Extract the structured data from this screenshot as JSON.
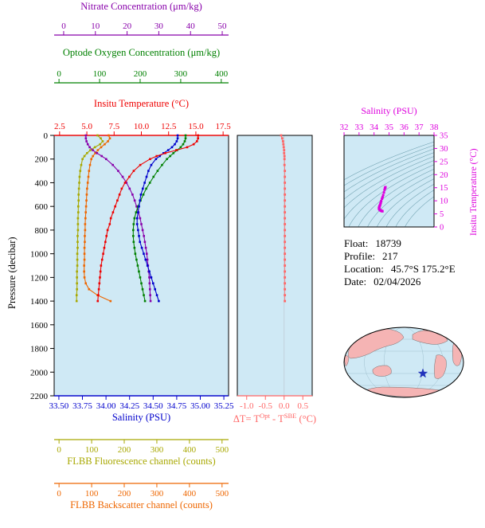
{
  "colors": {
    "nitrate": "#8800aa",
    "oxygen": "#008000",
    "temperature": "#ee0000",
    "salinity": "#0000cc",
    "fluorescence": "#a8a800",
    "backscatter": "#ee6600",
    "delta_t": "#ff6666",
    "ts": "#dd00dd",
    "pressure": "#000000",
    "plot_bg": "#cfe9f5",
    "map_land": "#f5b4b4",
    "map_ocean": "#cfe9f5",
    "star": "#2233bb",
    "contour": "#6c9fae"
  },
  "titles": {
    "nitrate": "Nitrate Concentration (μm/kg)",
    "oxygen": "Optode Oxygen Concentration (μm/kg)",
    "temperature": "Insitu Temperature (°C)",
    "pressure": "Pressure (decibar)",
    "salinity": "Salinity (PSU)",
    "fluorescence": "FLBB Fluorescence channel (counts)",
    "backscatter": "FLBB Backscatter channel (counts)",
    "ts_salinity": "Salinity (PSU)",
    "ts_temperature": "Insitu Temperature (°C)",
    "delta_t_parts": {
      "p1": "ΔT= T",
      "sup1": "Opt",
      "p2": " - T",
      "sup2": "SBE",
      "p3": " (°C)"
    }
  },
  "info": {
    "float_label": "Float:",
    "float_value": "18739",
    "profile_label": "Profile:",
    "profile_value": "217",
    "location_label": "Location:",
    "location_value": "45.7°S 175.2°E",
    "date_label": "Date:",
    "date_value": "02/04/2026"
  },
  "chart_data": {
    "type": "line",
    "pressure_dbar": [
      0,
      25,
      50,
      75,
      100,
      125,
      150,
      175,
      200,
      250,
      300,
      350,
      400,
      450,
      500,
      550,
      600,
      650,
      700,
      750,
      800,
      850,
      900,
      950,
      1000,
      1050,
      1100,
      1150,
      1200,
      1250,
      1300,
      1350,
      1400
    ],
    "pressure_axis": {
      "label": "Pressure (decibar)",
      "lim": [
        0,
        2200
      ],
      "tick_labels": [
        "0",
        "200",
        "400",
        "600",
        "800",
        "1000",
        "1200",
        "1400",
        "1600",
        "1800",
        "2000",
        "2200"
      ]
    },
    "profiles": [
      {
        "id": "fluorescence",
        "name": "FLBB Fluorescence channel (counts)",
        "lim": [
          -15,
          520
        ],
        "tick_labels": [
          "0",
          "100",
          "200",
          "300",
          "400",
          "500"
        ],
        "values": [
          118,
          128,
          134,
          126,
          110,
          96,
          86,
          78,
          72,
          68,
          65,
          63,
          62,
          61,
          60,
          60,
          59,
          59,
          58,
          58,
          58,
          57,
          57,
          57,
          56,
          56,
          56,
          55,
          55,
          55,
          55,
          54,
          54
        ]
      },
      {
        "id": "backscatter",
        "name": "FLBB Backscatter channel (counts)",
        "lim": [
          -15,
          520
        ],
        "tick_labels": [
          "0",
          "100",
          "200",
          "300",
          "400",
          "500"
        ],
        "values": [
          152,
          156,
          150,
          140,
          129,
          119,
          111,
          104,
          99,
          95,
          92,
          90,
          88,
          86,
          85,
          84,
          83,
          82,
          81,
          80,
          80,
          79,
          79,
          78,
          78,
          78,
          77,
          77,
          78,
          82,
          92,
          118,
          158
        ]
      },
      {
        "id": "nitrate",
        "name": "Nitrate Concentration (μm/kg)",
        "lim": [
          -3,
          52
        ],
        "tick_labels": [
          "0",
          "10",
          "20",
          "30",
          "40",
          "50"
        ],
        "values": [
          7.0,
          7.0,
          7.2,
          7.6,
          8.2,
          9.2,
          10.5,
          12.0,
          13.4,
          15.5,
          17.2,
          18.6,
          19.8,
          20.8,
          21.7,
          22.4,
          23.0,
          23.6,
          24.1,
          24.5,
          24.9,
          25.3,
          25.6,
          25.9,
          26.2,
          26.4,
          26.6,
          26.8,
          27.0,
          27.1,
          27.2,
          27.3,
          27.4
        ]
      },
      {
        "id": "oxygen",
        "name": "Optode Oxygen Concentration (μm/kg)",
        "lim": [
          -12,
          418
        ],
        "tick_labels": [
          "0",
          "100",
          "200",
          "300",
          "400"
        ],
        "values": [
          312,
          312,
          310,
          306,
          300,
          291,
          282,
          274,
          266,
          254,
          243,
          233,
          224,
          215,
          208,
          201,
          195,
          190,
          186,
          184,
          183,
          183,
          184,
          186,
          188,
          191,
          194,
          197,
          200,
          203,
          206,
          209,
          212
        ]
      },
      {
        "id": "salinity",
        "name": "Salinity (PSU)",
        "lim": [
          33.45,
          35.3
        ],
        "tick_labels": [
          "33.50",
          "33.75",
          "34.00",
          "34.25",
          "34.50",
          "34.75",
          "35.00",
          "35.25"
        ],
        "values": [
          34.76,
          34.76,
          34.75,
          34.73,
          34.7,
          34.66,
          34.61,
          34.57,
          34.53,
          34.48,
          34.45,
          34.43,
          34.41,
          34.39,
          34.37,
          34.36,
          34.35,
          34.34,
          34.33,
          34.33,
          34.34,
          34.35,
          34.36,
          34.38,
          34.4,
          34.42,
          34.44,
          34.46,
          34.48,
          34.5,
          34.52,
          34.54,
          34.56
        ]
      },
      {
        "id": "temperature",
        "name": "Insitu Temperature (°C)",
        "lim": [
          2.0,
          18.0
        ],
        "tick_labels": [
          "2.5",
          "5.0",
          "7.5",
          "10.0",
          "12.5",
          "15.0",
          "17.5"
        ],
        "values": [
          15.2,
          15.2,
          15.1,
          14.8,
          14.2,
          13.2,
          12.2,
          11.4,
          10.8,
          9.9,
          9.3,
          8.9,
          8.5,
          8.2,
          8.0,
          7.8,
          7.6,
          7.4,
          7.2,
          7.1,
          6.9,
          6.8,
          6.7,
          6.6,
          6.5,
          6.4,
          6.3,
          6.25,
          6.2,
          6.15,
          6.1,
          6.05,
          6.0
        ]
      }
    ],
    "delta_t": {
      "name": "ΔT= TOpt - TSBE (°C)",
      "lim": [
        -1.25,
        0.75
      ],
      "tick_labels": [
        "-1.0",
        "-0.5",
        "0.0",
        "0.5"
      ],
      "values": [
        -0.08,
        -0.05,
        -0.03,
        -0.02,
        -0.01,
        0.0,
        0.0,
        0.01,
        0.01,
        0.01,
        0.02,
        0.02,
        0.02,
        0.02,
        0.02,
        0.02,
        0.02,
        0.02,
        0.02,
        0.02,
        0.02,
        0.02,
        0.02,
        0.02,
        0.02,
        0.02,
        0.02,
        0.02,
        0.02,
        0.02,
        0.02,
        0.02,
        0.02
      ]
    },
    "ts_diagram": {
      "x_name": "Salinity (PSU)",
      "x_lim": [
        32,
        38
      ],
      "x_tick_labels": [
        "32",
        "33",
        "34",
        "35",
        "36",
        "37",
        "38"
      ],
      "y_name": "Insitu Temperature (°C)",
      "y_lim": [
        0,
        35
      ],
      "y_tick_labels": [
        "0",
        "5",
        "10",
        "15",
        "20",
        "25",
        "30",
        "35"
      ],
      "sigma_contours": [
        23,
        23.5,
        24,
        24.5,
        25,
        25.5,
        26,
        26.5,
        27,
        27.5,
        28,
        28.5,
        29
      ]
    }
  }
}
